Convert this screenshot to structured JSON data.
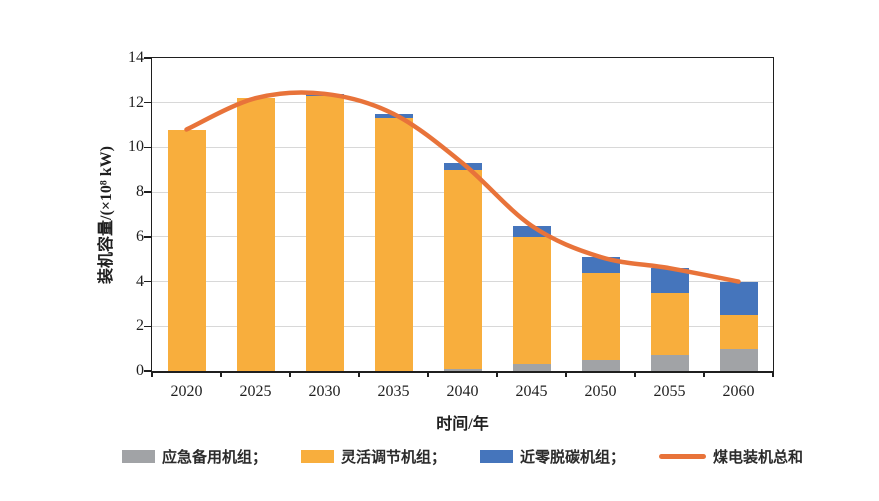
{
  "chart_data": {
    "type": "bar",
    "stacked": true,
    "title": "",
    "xlabel": "时间/年",
    "ylabel": "装机容量/(×10⁸ kW)",
    "categories": [
      "2020",
      "2025",
      "2030",
      "2035",
      "2040",
      "2045",
      "2050",
      "2055",
      "2060"
    ],
    "ylim": [
      0,
      14
    ],
    "yticks": [
      0,
      2,
      4,
      6,
      8,
      10,
      12,
      14
    ],
    "grid": "horizontal",
    "legend_position": "bottom",
    "series": [
      {
        "name": "应急备用机组",
        "type": "bar",
        "color": "#A1A3A6",
        "values": [
          0,
          0,
          0,
          0,
          0.1,
          0.3,
          0.5,
          0.7,
          1.0
        ]
      },
      {
        "name": "灵活调节机组",
        "type": "bar",
        "color": "#F8AE3D",
        "values": [
          10.8,
          12.2,
          12.3,
          11.3,
          8.9,
          5.7,
          3.9,
          2.8,
          1.5
        ]
      },
      {
        "name": "近零脱碳机组",
        "type": "bar",
        "color": "#4575BC",
        "values": [
          0,
          0,
          0.1,
          0.2,
          0.3,
          0.5,
          0.7,
          1.1,
          1.5
        ]
      },
      {
        "name": "煤电装机总和",
        "type": "line",
        "color": "#E8733A",
        "values": [
          10.8,
          12.2,
          12.4,
          11.5,
          9.3,
          6.5,
          5.1,
          4.6,
          4.0
        ]
      }
    ],
    "legend": [
      {
        "label": "应急备用机组；",
        "swatch": "rect",
        "color": "#A1A3A6"
      },
      {
        "label": "灵活调节机组；",
        "swatch": "rect",
        "color": "#F8AE3D"
      },
      {
        "label": "近零脱碳机组；",
        "swatch": "rect",
        "color": "#4575BC"
      },
      {
        "label": "煤电装机总和",
        "swatch": "line",
        "color": "#E8733A"
      }
    ],
    "colors": {
      "grid": "#D8D8D8",
      "axis": "#1F1F1F",
      "background": "#FFFFFF"
    }
  }
}
